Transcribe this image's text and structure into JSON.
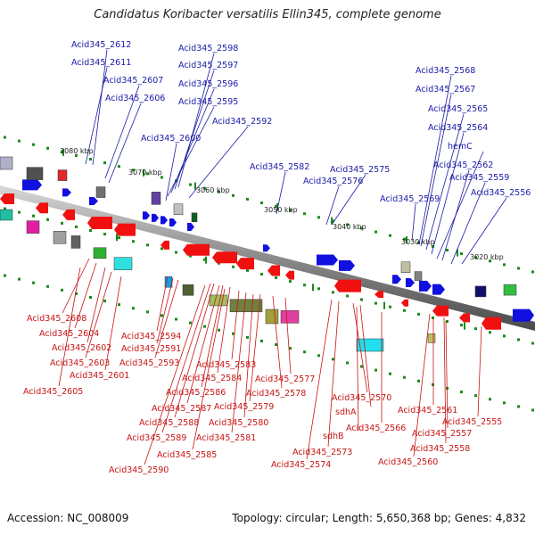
{
  "title": "Candidatus Koribacter versatilis Ellin345, complete genome",
  "footer": {
    "accession": "Accession: NC_008009",
    "topology": "Topology: circular; Length: 5,650,368 bp; Genes: 4,832"
  },
  "colors": {
    "forward_label": "#1a1aa6",
    "reverse_label": "#c81414",
    "backbone": "#8a8a8a",
    "tick": "#1a8a1a"
  },
  "kbp_ticks": [
    {
      "label": "3080 kbp"
    },
    {
      "label": "3070 kbp"
    },
    {
      "label": "3060 kbp"
    },
    {
      "label": "3050 kbp"
    },
    {
      "label": "3040 kbp"
    },
    {
      "label": "3030 kbp"
    },
    {
      "label": "3020 kbp"
    }
  ],
  "forward_labels": [
    {
      "name": "Acid345_2612"
    },
    {
      "name": "Acid345_2611"
    },
    {
      "name": "Acid345_2607"
    },
    {
      "name": "Acid345_2606"
    },
    {
      "name": "Acid345_2598"
    },
    {
      "name": "Acid345_2597"
    },
    {
      "name": "Acid345_2596"
    },
    {
      "name": "Acid345_2595"
    },
    {
      "name": "Acid345_2592"
    },
    {
      "name": "Acid345_2600"
    },
    {
      "name": "Acid345_2582"
    },
    {
      "name": "Acid345_2575"
    },
    {
      "name": "Acid345_2576"
    },
    {
      "name": "Acid345_2568"
    },
    {
      "name": "Acid345_2567"
    },
    {
      "name": "Acid345_2565"
    },
    {
      "name": "Acid345_2564"
    },
    {
      "name": "hemC"
    },
    {
      "name": "Acid345_2562"
    },
    {
      "name": "Acid345_2559"
    },
    {
      "name": "Acid345_2556"
    },
    {
      "name": "Acid345_2569"
    }
  ],
  "reverse_labels": [
    {
      "name": "Acid345_2608"
    },
    {
      "name": "Acid345_2604"
    },
    {
      "name": "Acid345_2602"
    },
    {
      "name": "Acid345_2603"
    },
    {
      "name": "Acid345_2601"
    },
    {
      "name": "Acid345_2605"
    },
    {
      "name": "Acid345_2594"
    },
    {
      "name": "Acid345_2591"
    },
    {
      "name": "Acid345_2593"
    },
    {
      "name": "Acid345_2583"
    },
    {
      "name": "Acid345_2584"
    },
    {
      "name": "Acid345_2586"
    },
    {
      "name": "Acid345_2587"
    },
    {
      "name": "Acid345_2588"
    },
    {
      "name": "Acid345_2589"
    },
    {
      "name": "Acid345_2590"
    },
    {
      "name": "Acid345_2585"
    },
    {
      "name": "Acid345_2581"
    },
    {
      "name": "Acid345_2580"
    },
    {
      "name": "Acid345_2579"
    },
    {
      "name": "Acid345_2578"
    },
    {
      "name": "Acid345_2577"
    },
    {
      "name": "Acid345_2570"
    },
    {
      "name": "sdhA"
    },
    {
      "name": "sdhB"
    },
    {
      "name": "Acid345_2573"
    },
    {
      "name": "Acid345_2574"
    },
    {
      "name": "Acid345_2566"
    },
    {
      "name": "Acid345_2561"
    },
    {
      "name": "Acid345_2557"
    },
    {
      "name": "Acid345_2555"
    },
    {
      "name": "Acid345_2558"
    },
    {
      "name": "Acid345_2560"
    }
  ]
}
